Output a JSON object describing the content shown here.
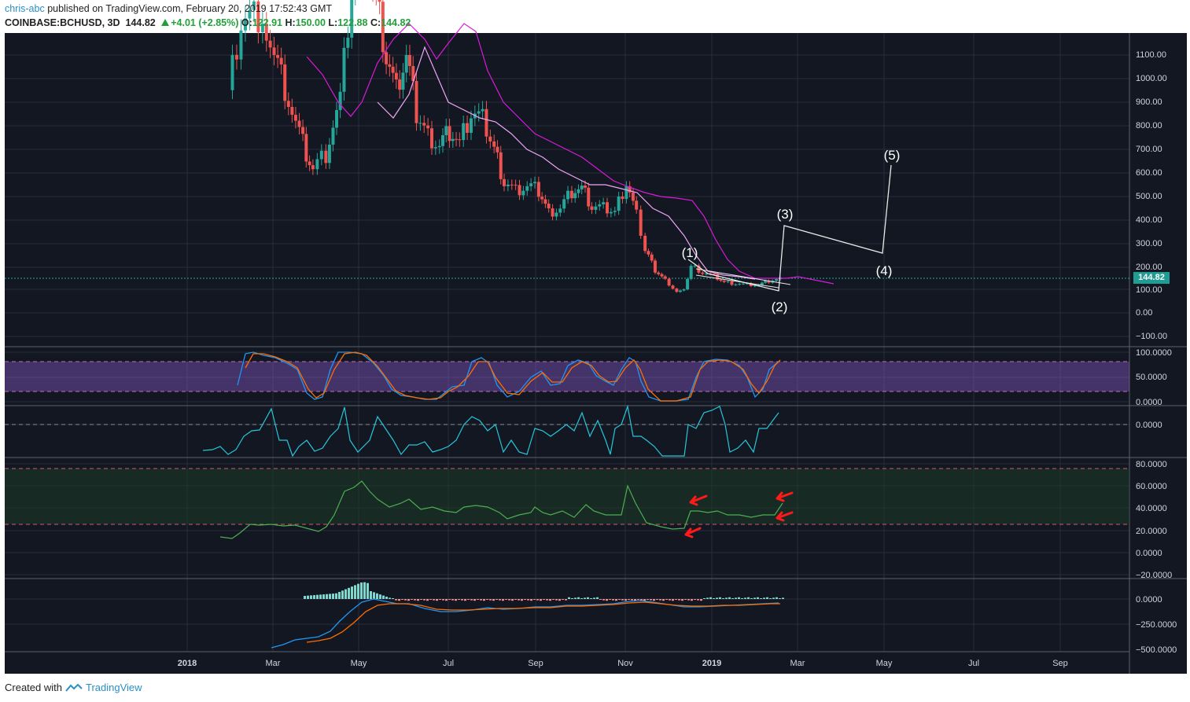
{
  "header": {
    "user": "chris-abc",
    "published_text": "published on TradingView.com, February 20, 2019 17:52:43 GMT",
    "symbol": "COINBASE:BCHUSD, 3D",
    "last": "144.82",
    "change": "+4.01 (+2.85%)",
    "o_label": "O:",
    "o_val": "122.91",
    "h_label": "H:",
    "h_val": "150.00",
    "l_label": "L:",
    "l_val": "122.88",
    "c_label": "C:",
    "c_val": "144.82"
  },
  "colors": {
    "background": "#131722",
    "up": "#26a69a",
    "down": "#ef5350",
    "ma_pink": "#e040fb",
    "ma_light": "#f0a6f7",
    "stoch_k": "#2196f3",
    "stoch_d": "#ff6d00",
    "cci": "#26c6da",
    "rsi": "#4caf50",
    "arrow": "#ff1a1a"
  },
  "price_axis": [
    "1100.00",
    "1000.00",
    "900.00",
    "800.00",
    "700.00",
    "600.00",
    "500.00",
    "400.00",
    "300.00",
    "200.00",
    "100.00",
    "0.00",
    "−100.00"
  ],
  "current_price_label": "144.82",
  "stoch_axis": [
    "100.0000",
    "50.0000",
    "0.0000"
  ],
  "cci_axis": [
    "0.0000"
  ],
  "rsi_axis": [
    "80.0000",
    "60.0000",
    "40.0000",
    "20.0000",
    "0.0000",
    "−20.0000"
  ],
  "macd_axis": [
    "0.0000",
    "−250.0000",
    "−500.0000"
  ],
  "time_axis": [
    "2018",
    "Mar",
    "May",
    "Jul",
    "Sep",
    "Nov",
    "2019",
    "Mar",
    "May",
    "Jul",
    "Sep"
  ],
  "wave_labels": [
    "(1)",
    "(2)",
    "(3)",
    "(4)",
    "(5)"
  ],
  "footer": {
    "created": "Created with",
    "brand": "TradingView"
  },
  "chart_data": {
    "type": "candlestick",
    "symbol": "COINBASE:BCHUSD",
    "interval": "3D",
    "ohlc_last": {
      "open": 122.91,
      "high": 150.0,
      "low": 122.88,
      "close": 144.82
    },
    "close_series": [
      [
        "2018-02-01",
        950
      ],
      [
        "2018-02-10",
        1250
      ],
      [
        "2018-02-25",
        1280
      ],
      [
        "2018-03-05",
        1100
      ],
      [
        "2018-03-15",
        900
      ],
      [
        "2018-03-25",
        720
      ],
      [
        "2018-04-01",
        620
      ],
      [
        "2018-04-10",
        680
      ],
      [
        "2018-04-20",
        900
      ],
      [
        "2018-04-28",
        1400
      ],
      [
        "2018-05-08",
        1500
      ],
      [
        "2018-05-15",
        1350
      ],
      [
        "2018-05-22",
        1100
      ],
      [
        "2018-05-29",
        950
      ],
      [
        "2018-06-05",
        1100
      ],
      [
        "2018-06-12",
        850
      ],
      [
        "2018-06-20",
        760
      ],
      [
        "2018-06-28",
        720
      ],
      [
        "2018-07-05",
        780
      ],
      [
        "2018-07-12",
        720
      ],
      [
        "2018-07-20",
        850
      ],
      [
        "2018-07-28",
        820
      ],
      [
        "2018-08-05",
        700
      ],
      [
        "2018-08-12",
        560
      ],
      [
        "2018-08-20",
        520
      ],
      [
        "2018-08-28",
        540
      ],
      [
        "2018-09-05",
        520
      ],
      [
        "2018-09-12",
        430
      ],
      [
        "2018-09-20",
        450
      ],
      [
        "2018-09-28",
        520
      ],
      [
        "2018-10-05",
        530
      ],
      [
        "2018-10-12",
        450
      ],
      [
        "2018-10-20",
        445
      ],
      [
        "2018-10-28",
        430
      ],
      [
        "2018-11-05",
        560
      ],
      [
        "2018-11-12",
        420
      ],
      [
        "2018-11-18",
        270
      ],
      [
        "2018-11-25",
        180
      ],
      [
        "2018-12-02",
        140
      ],
      [
        "2018-12-10",
        90
      ],
      [
        "2018-12-15",
        95
      ],
      [
        "2018-12-20",
        200
      ],
      [
        "2018-12-28",
        170
      ],
      [
        "2019-01-05",
        155
      ],
      [
        "2019-01-12",
        130
      ],
      [
        "2019-01-20",
        125
      ],
      [
        "2019-01-28",
        120
      ],
      [
        "2019-02-05",
        118
      ],
      [
        "2019-02-12",
        135
      ],
      [
        "2019-02-20",
        144.82
      ]
    ],
    "elliott_wave_projection": [
      {
        "label": "(1)",
        "date": "2018-12-20",
        "price": 240
      },
      {
        "label": "(2)",
        "date": "2019-02-24",
        "price": 95
      },
      {
        "label": "(3)",
        "date": "2019-02-27",
        "price": 370
      },
      {
        "label": "(4)",
        "date": "2019-05-01",
        "price": 250
      },
      {
        "label": "(5)",
        "date": "2019-05-05",
        "price": 630
      }
    ],
    "price_ylim": [
      -150,
      1200
    ],
    "indicators": {
      "stochastic": {
        "ylim": [
          0,
          100
        ],
        "bands": [
          20,
          80
        ]
      },
      "cci": {
        "zero_line": 0
      },
      "rsi": {
        "ylim": [
          -20,
          80
        ],
        "bands": [
          25,
          75
        ],
        "series": [
          14,
          12,
          18,
          25,
          24,
          22,
          24,
          30,
          55,
          63,
          48,
          40,
          38,
          35,
          32,
          30,
          38,
          36,
          38,
          30,
          35,
          38,
          36,
          32,
          35,
          58,
          30,
          22,
          20,
          38,
          36,
          38,
          32,
          33,
          35,
          42
        ]
      },
      "macd": {
        "ylim": [
          -500,
          0
        ]
      }
    }
  }
}
